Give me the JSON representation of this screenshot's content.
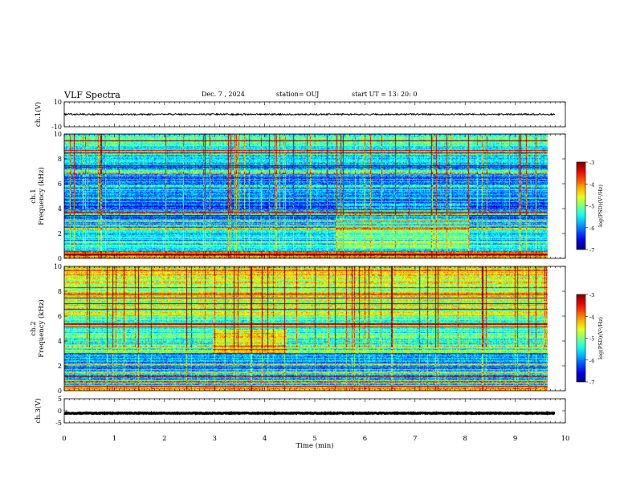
{
  "header": {
    "title": "VLF Spectra",
    "date": "Dec. 7 , 2024",
    "station": "station= OUJ",
    "start": "start UT = 13: 20: 0"
  },
  "chart_data": [
    {
      "type": "line",
      "name": "ch1-waveform",
      "ylabel": "ch.1(V)",
      "ylim": [
        -10,
        10
      ],
      "y_ticks": [
        "10",
        "-10"
      ],
      "xlim": [
        0,
        10
      ],
      "trace_level": 0,
      "trace_amplitude": 0.6,
      "trace_end_min": 9.8
    },
    {
      "type": "heatmap",
      "name": "ch1-spectrogram",
      "ylabel": "ch.1\nFrequency (kHz)",
      "ylim": [
        0,
        10
      ],
      "y_ticks": [
        "0",
        "2",
        "4",
        "6",
        "8",
        "10"
      ],
      "xlim": [
        0,
        10
      ],
      "data_end_min": 9.8,
      "colorbar": {
        "label": "log(PSD)(V²/Hz)",
        "range": [
          -7,
          -3
        ],
        "ticks": [
          "-3",
          "-4",
          "-5",
          "-6",
          "-7"
        ]
      }
    },
    {
      "type": "heatmap",
      "name": "ch2-spectrogram",
      "ylabel": "ch.2\nFrequency (kHz)",
      "ylim": [
        0,
        10
      ],
      "y_ticks": [
        "0",
        "2",
        "4",
        "6",
        "8",
        "10"
      ],
      "xlim": [
        0,
        10
      ],
      "data_end_min": 9.8,
      "colorbar": {
        "label": "log(PSD)(V²/Hz)",
        "range": [
          -7,
          -3
        ],
        "ticks": [
          "-3",
          "-4",
          "-5",
          "-6",
          "-7"
        ]
      }
    },
    {
      "type": "line",
      "name": "ch3-waveform",
      "ylabel": "ch.3(V)",
      "ylim": [
        -5,
        5
      ],
      "y_ticks": [
        "5",
        "0",
        "-5"
      ],
      "xlim": [
        0,
        10
      ],
      "trace_level": -1,
      "trace_amplitude": 0.15,
      "trace_end_min": 9.8
    }
  ],
  "x_axis": {
    "label": "Time (min)",
    "ticks": [
      "0",
      "1",
      "2",
      "3",
      "4",
      "5",
      "6",
      "7",
      "8",
      "9",
      "10"
    ]
  }
}
